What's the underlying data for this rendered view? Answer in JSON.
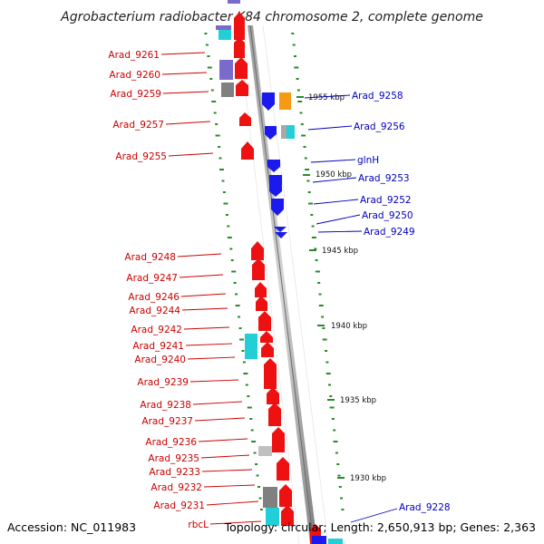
{
  "title": "Agrobacterium radiobacter K84 chromosome 2, complete genome",
  "footer": {
    "accession": "Accession: NC_011983",
    "summary": "Topology: circular; Length: 2,650,913 bp; Genes: 2,363"
  },
  "scale_labels": [
    "1955 kbp",
    "1950 kbp",
    "1945 kbp",
    "1940 kbp",
    "1935 kbp",
    "1930 kbp"
  ],
  "left_genes": [
    "Arad_9261",
    "Arad_9260",
    "Arad_9259",
    "Arad_9257",
    "Arad_9255",
    "Arad_9248",
    "Arad_9247",
    "Arad_9246",
    "Arad_9244",
    "Arad_9242",
    "Arad_9241",
    "Arad_9240",
    "Arad_9239",
    "Arad_9238",
    "Arad_9237",
    "Arad_9236",
    "Arad_9235",
    "Arad_9233",
    "Arad_9232",
    "Arad_9231",
    "rbcL"
  ],
  "right_genes": [
    "Arad_9258",
    "Arad_9256",
    "glnH",
    "Arad_9253",
    "Arad_9252",
    "Arad_9250",
    "Arad_9249",
    "Arad_9228"
  ],
  "colors": {
    "forward_strand": "#ee1111",
    "reverse_strand": "#1a1aee",
    "cog_cyan": "#22cfd6",
    "cog_purple": "#7a6acc",
    "cog_gray": "#808080",
    "cog_lightgray": "#c0c0c0",
    "cog_orange": "#f59a12",
    "gc_skew": "#2a8a2a",
    "left_label": "#cc0000",
    "right_label": "#0000bb"
  }
}
